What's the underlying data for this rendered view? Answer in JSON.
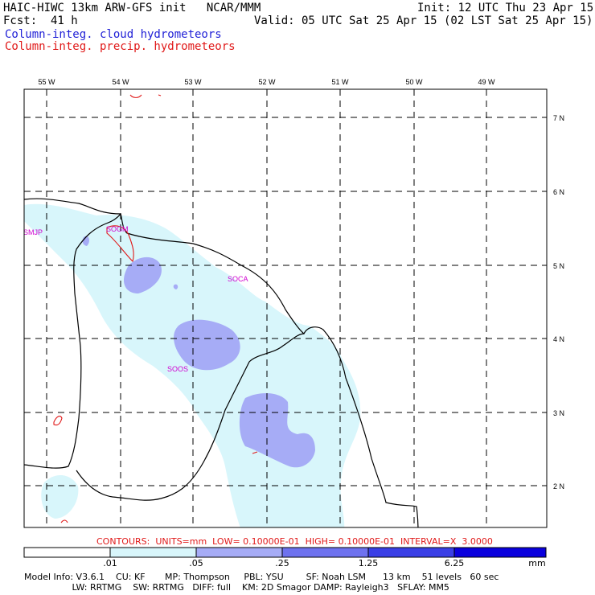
{
  "header": {
    "title": "HAIC-HIWC 13km ARW-GFS init   NCAR/MMM",
    "fcst": "Fcst:  41 h",
    "init": "Init: 12 UTC Thu 23 Apr 15",
    "valid": "Valid: 05 UTC Sat 25 Apr 15 (02 LST Sat 25 Apr 15)",
    "field_cloud": "Column-integ. cloud hydrometeors",
    "field_precip": "Column-integ. precip. hydrometeors"
  },
  "colors": {
    "cloud_label": "#1f1fd6",
    "precip": "#e01818",
    "station": "#d000d0",
    "fill_1": "#d8f6fb",
    "fill_2": "#a6acf6",
    "fill_3": "#6e72ef",
    "fill_4": "#3a3fe6",
    "fill_5": "#0a00dd"
  },
  "map": {
    "lon_labels": [
      "55 W",
      "54 W",
      "53 W",
      "52 W",
      "51 W",
      "50 W",
      "49 W"
    ],
    "lat_labels": [
      "7 N",
      "6 N",
      "5 N",
      "4 N",
      "3 N",
      "2 N"
    ],
    "stations": [
      "SMJP",
      "SOGM",
      "SOCA",
      "SOOS"
    ]
  },
  "contours_text": "CONTOURS:  UNITS=mm  LOW= 0.10000E-01  HIGH= 0.10000E-01  INTERVAL=X  3.0000",
  "colorbar": {
    "labels": [
      ".01",
      ".05",
      ".25",
      "1.25",
      "6.25"
    ],
    "units": "mm"
  },
  "model_info": {
    "line1": "Model Info: V3.6.1    CU: KF       MP: Thompson     PBL: YSU        SF: Noah LSM      13 km    51 levels   60 sec",
    "line2": "                 LW: RRTMG    SW: RRTMG   DIFF: full    KM: 2D Smagor DAMP: Rayleigh3   SFLAY: MM5"
  }
}
